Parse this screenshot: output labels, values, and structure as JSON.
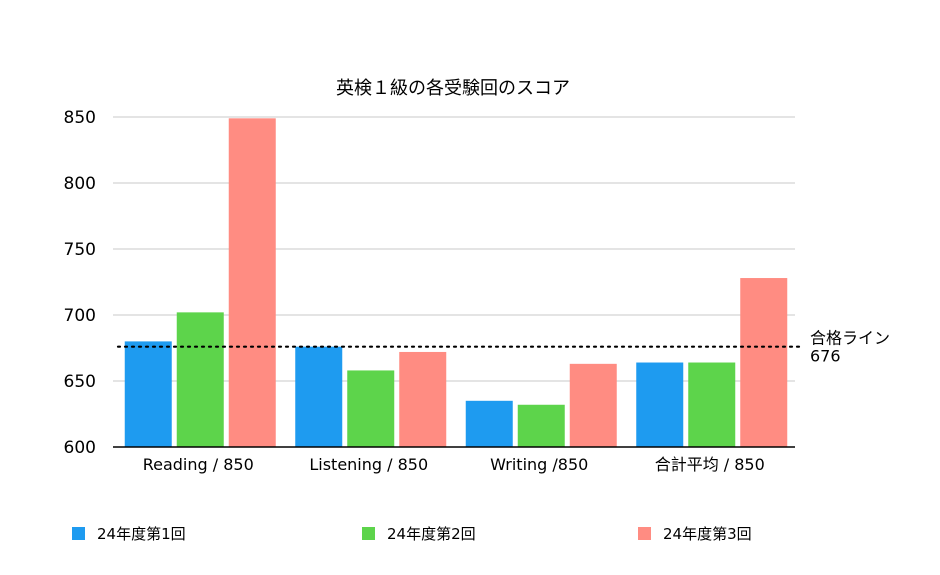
{
  "chart_data": {
    "type": "bar",
    "title": "英検１級の各受験回のスコア",
    "categories": [
      "Reading / 850",
      "Listening / 850",
      "Writing /850",
      "合計平均 / 850"
    ],
    "series": [
      {
        "name": "24年度第1回",
        "color": "#1e9bf0",
        "values": [
          680,
          676,
          635,
          664
        ]
      },
      {
        "name": "24年度第2回",
        "color": "#5dd44b",
        "values": [
          702,
          658,
          632,
          664
        ]
      },
      {
        "name": "24年度第3回",
        "color": "#ff8c82",
        "values": [
          849,
          672,
          663,
          728
        ]
      }
    ],
    "ylim": [
      600,
      850
    ],
    "yticks": [
      600,
      650,
      700,
      750,
      800,
      850
    ],
    "grid": true,
    "reference_line": {
      "label": "合格ライン",
      "value_label": "676",
      "value": 676
    },
    "legend_position": "bottom"
  }
}
